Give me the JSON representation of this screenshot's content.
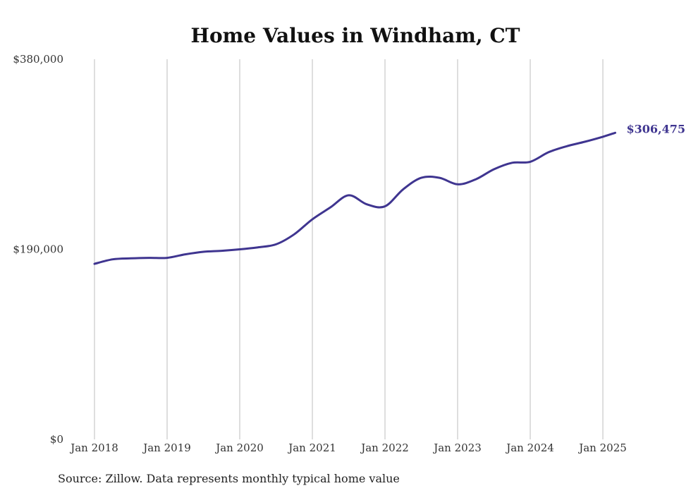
{
  "chart_data": {
    "type": "line",
    "title": "Home Values in Windham, CT",
    "xlabel": "",
    "ylabel": "",
    "x_tick_labels": [
      "Jan 2018",
      "Jan 2019",
      "Jan 2020",
      "Jan 2021",
      "Jan 2022",
      "Jan 2023",
      "Jan 2024",
      "Jan 2025"
    ],
    "y_tick_labels": [
      "$380,000",
      "$190,000",
      "$0"
    ],
    "y_tick_values": [
      380000,
      190000,
      0
    ],
    "ylim": [
      0,
      380000
    ],
    "xlim": [
      2018.0,
      2025.0
    ],
    "grid": "vertical",
    "series": [
      {
        "color": "#3f3590",
        "end_label": "$306,475",
        "points": [
          [
            2018.0,
            175500
          ],
          [
            2018.25,
            180000
          ],
          [
            2018.5,
            181000
          ],
          [
            2018.75,
            181500
          ],
          [
            2019.0,
            181500
          ],
          [
            2019.25,
            185000
          ],
          [
            2019.5,
            187500
          ],
          [
            2019.75,
            188500
          ],
          [
            2020.0,
            190000
          ],
          [
            2020.25,
            192000
          ],
          [
            2020.5,
            195000
          ],
          [
            2020.75,
            205000
          ],
          [
            2021.0,
            220000
          ],
          [
            2021.25,
            232000
          ],
          [
            2021.5,
            244000
          ],
          [
            2021.75,
            235000
          ],
          [
            2022.0,
            233000
          ],
          [
            2022.25,
            250000
          ],
          [
            2022.5,
            261500
          ],
          [
            2022.75,
            261500
          ],
          [
            2023.0,
            255000
          ],
          [
            2023.25,
            260000
          ],
          [
            2023.5,
            270000
          ],
          [
            2023.75,
            276500
          ],
          [
            2024.0,
            277500
          ],
          [
            2024.25,
            287000
          ],
          [
            2024.5,
            293000
          ],
          [
            2024.75,
            297500
          ],
          [
            2025.0,
            302500
          ],
          [
            2025.17,
            306475
          ]
        ]
      }
    ]
  },
  "footer": {
    "source": "Source: Zillow. Data represents monthly typical home value"
  }
}
